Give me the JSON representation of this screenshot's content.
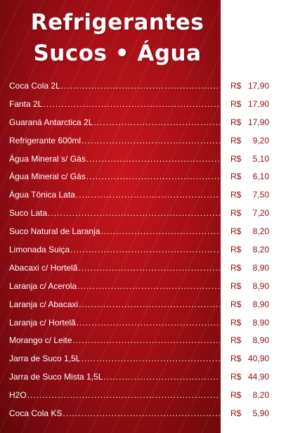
{
  "title": {
    "line1": "Refrigerantes",
    "line2": "Sucos • Água"
  },
  "currency": "R$",
  "items": [
    {
      "name": "Coca Cola 2L",
      "price": "17,90"
    },
    {
      "name": "Fanta 2L",
      "price": "17,90"
    },
    {
      "name": "Guaraná Antarctica 2L",
      "price": "17,90"
    },
    {
      "name": "Refrigerante 600ml",
      "price": "9,20"
    },
    {
      "name": "Água Mineral s/ Gás",
      "price": "5,10"
    },
    {
      "name": "Água Mineral c/ Gás",
      "price": "6,10"
    },
    {
      "name": "Água Tônica Lata",
      "price": "7,50"
    },
    {
      "name": "Suco Lata",
      "price": "7,20"
    },
    {
      "name": "Suco Natural de Laranja",
      "price": "8,20"
    },
    {
      "name": "Limonada Suiça",
      "price": "8,20"
    },
    {
      "name": "Abacaxi c/ Hortelã",
      "price": "8,90"
    },
    {
      "name": "Laranja c/ Acerola",
      "price": "8,90"
    },
    {
      "name": "Laranja c/ Abacaxi",
      "price": "8,90"
    },
    {
      "name": "Laranja c/ Hortelã",
      "price": "8,90"
    },
    {
      "name": "Morango c/ Leite",
      "price": "8,90"
    },
    {
      "name": "Jarra de Suco 1,5L",
      "price": "40,90"
    },
    {
      "name": "Jarra de Suco Mista 1,5L",
      "price": "44,90"
    },
    {
      "name": "H2O",
      "price": "8,20"
    },
    {
      "name": "Coca Cola KS",
      "price": "5,90"
    }
  ],
  "colors": {
    "panel": "#a50f16",
    "price_text": "#8b0e14",
    "item_text": "#ffffff"
  }
}
